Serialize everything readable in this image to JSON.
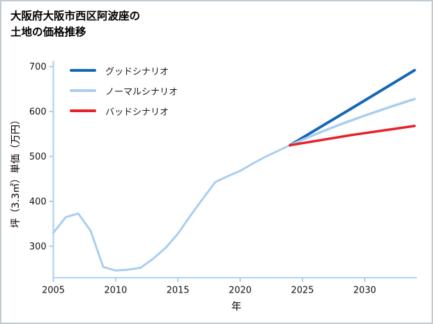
{
  "page": {
    "background": "#ffffff",
    "border_color": "#c2cad2"
  },
  "chart_data": {
    "type": "line",
    "title": "大阪府大阪市西区阿波座の土地の価格推移",
    "title_lines": [
      "大阪府大阪市西区阿波座の",
      "土地の価格推移"
    ],
    "xlabel": "年",
    "ylabel": "坪（3.3㎡）単価（万円）",
    "x_ticks": [
      2005,
      2010,
      2015,
      2020,
      2025,
      2030
    ],
    "y_ticks": [
      300,
      400,
      500,
      600,
      700
    ],
    "xlim": [
      2005,
      2034.2
    ],
    "ylim": [
      230,
      710
    ],
    "grid": false,
    "legend_position": "upper-left-inside",
    "axis_color": "#a8cef0",
    "text_color": "#111111",
    "series": [
      {
        "id": "historical",
        "legend": false,
        "color": "#a8cef0",
        "width": 3,
        "x": [
          2005,
          2006,
          2007,
          2008,
          2009,
          2010,
          2011,
          2012,
          2013,
          2014,
          2015,
          2016,
          2017,
          2018,
          2019,
          2020,
          2021,
          2022,
          2023,
          2024
        ],
        "y": [
          330,
          365,
          373,
          334,
          254,
          246,
          248,
          252,
          272,
          296,
          328,
          368,
          406,
          443,
          456,
          468,
          484,
          499,
          512,
          525
        ]
      },
      {
        "id": "good-scenario",
        "name": "グッドシナリオ",
        "legend": true,
        "color": "#1467b8",
        "width": 4,
        "x": [
          2024,
          2029,
          2034
        ],
        "y": [
          525,
          608,
          692
        ]
      },
      {
        "id": "normal-scenario",
        "name": "ノーマルシナリオ",
        "legend": true,
        "color": "#a8cef0",
        "width": 3.5,
        "x": [
          2024,
          2026,
          2028,
          2030,
          2032,
          2034
        ],
        "y": [
          525,
          549,
          571,
          591,
          610,
          628
        ]
      },
      {
        "id": "bad-scenario",
        "name": "バッドシナリオ",
        "legend": true,
        "color": "#e8202a",
        "width": 3.5,
        "x": [
          2024,
          2029,
          2034
        ],
        "y": [
          525,
          548,
          568
        ]
      }
    ]
  }
}
